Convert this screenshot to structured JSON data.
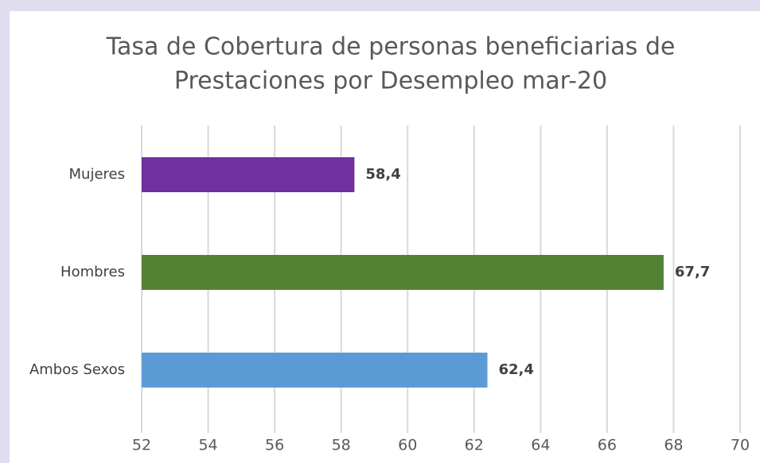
{
  "chart_data": {
    "type": "barh",
    "title": [
      "Tasa de Cobertura de personas beneficiarias de",
      "Prestaciones por Desempleo mar-20"
    ],
    "categories": [
      "Mujeres",
      "Hombres",
      "Ambos Sexos"
    ],
    "values": [
      58.4,
      67.7,
      62.4
    ],
    "value_labels": [
      "58,4",
      "67,7",
      "62,4"
    ],
    "colors": [
      "#7030a0",
      "#548235",
      "#5b9bd5"
    ],
    "xlim": [
      52,
      70
    ],
    "xticks": [
      52,
      54,
      56,
      58,
      60,
      62,
      64,
      66,
      68,
      70
    ],
    "grid": true
  }
}
